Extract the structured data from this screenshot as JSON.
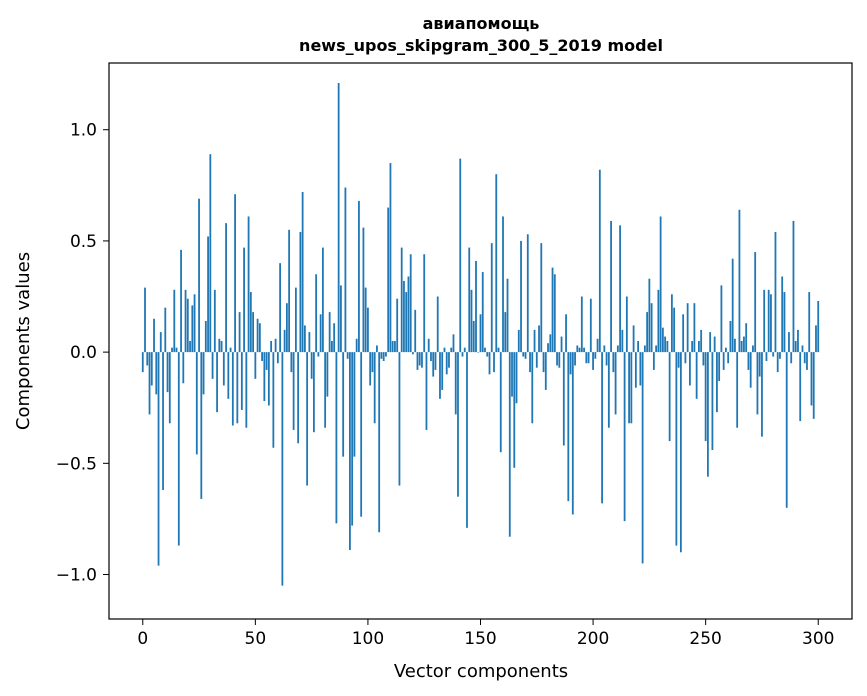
{
  "chart_data": {
    "type": "bar",
    "title": [
      "авиапомощь",
      "news_upos_skipgram_300_5_2019 model"
    ],
    "xlabel": "Vector components",
    "ylabel": "Components values",
    "xlim": [
      -15,
      315
    ],
    "ylim": [
      -1.2,
      1.3
    ],
    "xticks": [
      0,
      50,
      100,
      150,
      200,
      250,
      300
    ],
    "xtick_labels": [
      "0",
      "50",
      "100",
      "150",
      "200",
      "250",
      "300"
    ],
    "yticks": [
      -1.0,
      -0.5,
      0.0,
      0.5,
      1.0
    ],
    "ytick_labels": [
      "−1.0",
      "−0.5",
      "0.0",
      "0.5",
      "1.0"
    ],
    "grid": false,
    "color": "#1f77b4",
    "x_start": 0,
    "values": [
      -0.09,
      0.29,
      -0.06,
      -0.28,
      -0.15,
      0.15,
      -0.19,
      -0.96,
      0.09,
      -0.62,
      0.2,
      -0.18,
      -0.32,
      0.02,
      0.28,
      0.02,
      -0.87,
      0.46,
      -0.14,
      0.28,
      0.24,
      0.05,
      0.21,
      0.26,
      -0.46,
      0.69,
      -0.66,
      -0.19,
      0.14,
      0.52,
      0.89,
      -0.12,
      0.28,
      -0.27,
      0.06,
      0.05,
      -0.15,
      0.58,
      -0.21,
      0.02,
      -0.33,
      0.71,
      -0.32,
      0.18,
      -0.26,
      0.47,
      -0.34,
      0.61,
      0.27,
      0.18,
      -0.12,
      0.15,
      0.13,
      -0.04,
      -0.22,
      -0.08,
      -0.24,
      0.05,
      -0.43,
      0.06,
      -0.05,
      0.4,
      -1.05,
      0.1,
      0.22,
      0.55,
      -0.09,
      -0.35,
      0.29,
      -0.41,
      0.54,
      0.72,
      0.12,
      -0.6,
      0.09,
      -0.12,
      -0.36,
      0.35,
      -0.02,
      0.17,
      0.47,
      -0.34,
      -0.2,
      0.18,
      0.05,
      0.13,
      -0.77,
      1.21,
      0.3,
      -0.47,
      0.74,
      -0.03,
      -0.89,
      -0.78,
      -0.47,
      0.06,
      0.68,
      -0.74,
      0.56,
      0.29,
      0.2,
      -0.15,
      -0.09,
      -0.32,
      0.03,
      -0.81,
      -0.03,
      -0.04,
      -0.02,
      0.65,
      0.85,
      0.05,
      0.05,
      0.24,
      -0.6,
      0.47,
      0.32,
      0.27,
      0.34,
      0.44,
      -0.01,
      0.19,
      -0.08,
      -0.06,
      -0.07,
      0.44,
      -0.35,
      0.06,
      -0.04,
      -0.11,
      -0.08,
      0.25,
      -0.21,
      -0.17,
      0.02,
      -0.1,
      -0.07,
      0.02,
      0.08,
      -0.28,
      -0.65,
      0.87,
      -0.02,
      0.02,
      -0.79,
      0.47,
      0.28,
      0.14,
      0.41,
      0.0,
      0.17,
      0.36,
      0.02,
      -0.02,
      -0.1,
      0.49,
      -0.09,
      0.8,
      0.02,
      -0.45,
      0.61,
      0.18,
      0.33,
      -0.83,
      -0.2,
      -0.52,
      -0.23,
      0.1,
      0.5,
      -0.02,
      -0.03,
      0.53,
      -0.09,
      -0.32,
      0.1,
      -0.07,
      0.12,
      0.49,
      -0.09,
      -0.17,
      0.04,
      0.08,
      0.38,
      0.35,
      -0.06,
      -0.07,
      0.07,
      -0.42,
      0.17,
      -0.67,
      -0.1,
      -0.73,
      -0.06,
      0.03,
      0.02,
      0.25,
      0.02,
      -0.05,
      -0.05,
      0.24,
      -0.08,
      -0.03,
      0.06,
      0.82,
      -0.68,
      0.03,
      -0.06,
      -0.34,
      0.59,
      -0.09,
      -0.28,
      0.03,
      0.57,
      0.1,
      -0.76,
      0.25,
      -0.32,
      -0.32,
      0.12,
      -0.16,
      0.05,
      -0.15,
      -0.95,
      0.03,
      0.18,
      0.33,
      0.22,
      -0.08,
      0.03,
      0.28,
      0.61,
      0.11,
      0.07,
      0.05,
      -0.4,
      0.26,
      0.2,
      -0.87,
      -0.07,
      -0.9,
      0.17,
      -0.05,
      0.22,
      -0.15,
      0.05,
      0.22,
      -0.21,
      0.05,
      0.1,
      -0.06,
      -0.4,
      -0.56,
      0.09,
      -0.44,
      0.07,
      -0.27,
      -0.13,
      0.3,
      -0.08,
      0.02,
      -0.05,
      0.14,
      0.42,
      0.06,
      -0.34,
      0.64,
      0.05,
      0.07,
      0.13,
      -0.08,
      -0.16,
      0.03,
      0.45,
      -0.28,
      -0.11,
      -0.38,
      0.28,
      -0.04,
      0.28,
      0.26,
      -0.02,
      0.54,
      -0.09,
      -0.03,
      0.34,
      0.27,
      -0.7,
      0.09,
      -0.05,
      0.59,
      0.05,
      0.1,
      -0.31,
      0.03,
      -0.05,
      -0.08,
      0.27,
      -0.24,
      -0.3,
      0.12,
      0.23
    ]
  }
}
